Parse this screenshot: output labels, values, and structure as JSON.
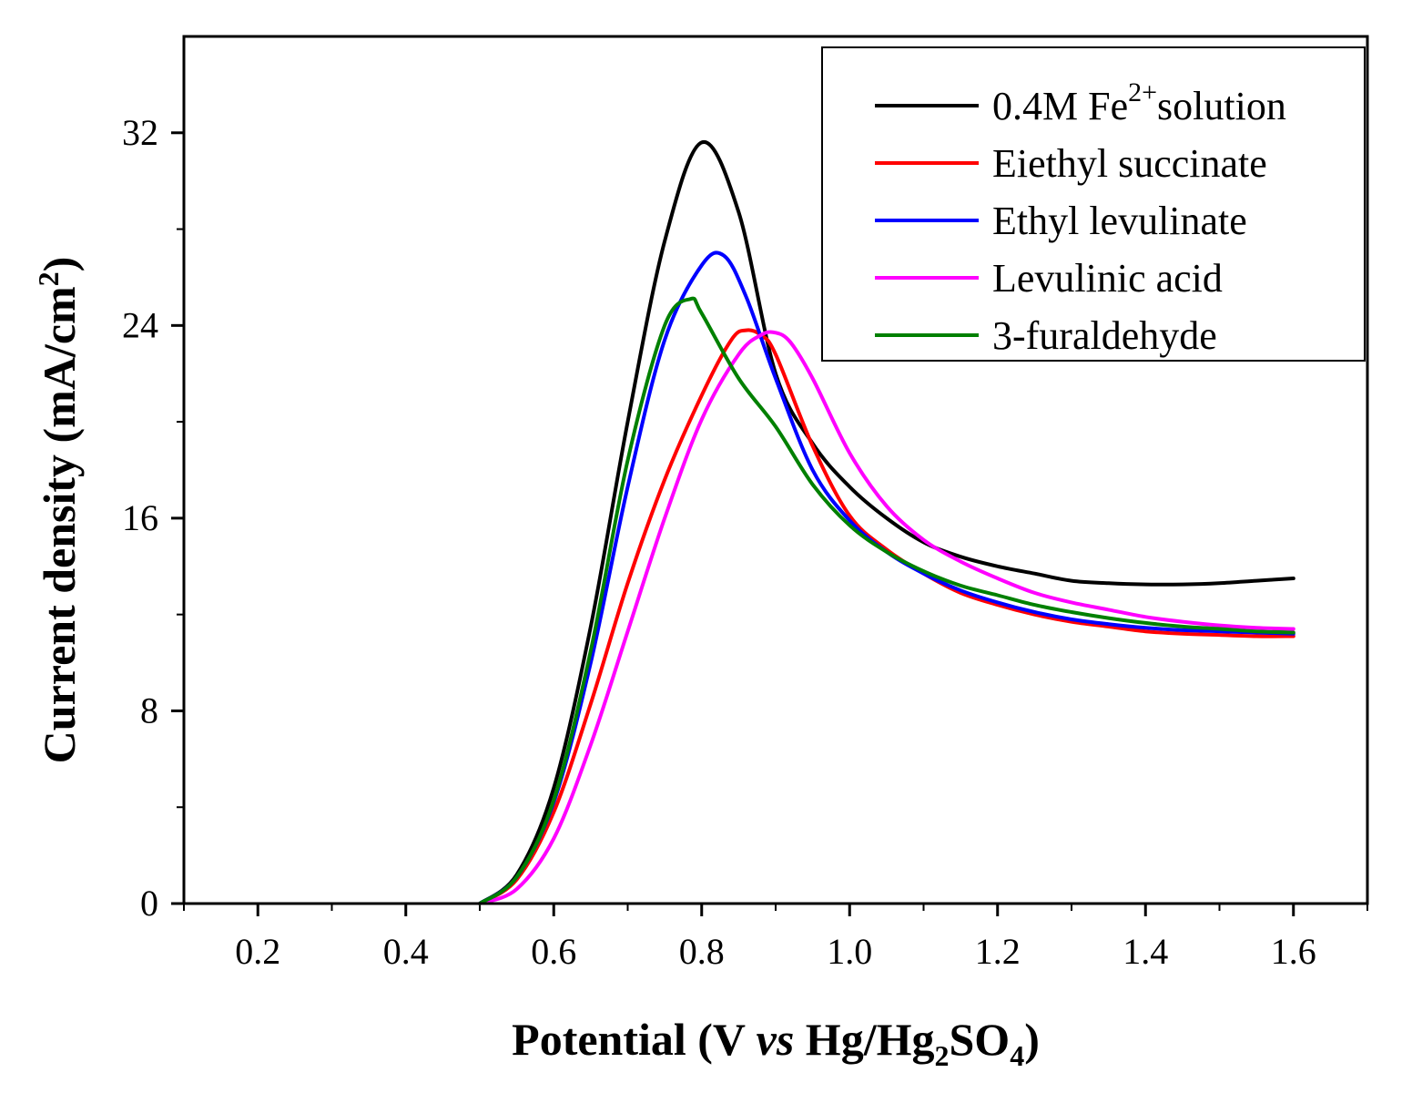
{
  "chart_data": {
    "type": "line",
    "title": "",
    "xlabel": {
      "prefix": "Potential (V ",
      "italic": "vs",
      "middle": " Hg/Hg",
      "sub1": "2",
      "mid2": "SO",
      "sub2": "4",
      "suffix": ")"
    },
    "ylabel": {
      "prefix": "Current density (mA/cm",
      "sup": "2",
      "suffix": ")"
    },
    "xlim": [
      0.1,
      1.7
    ],
    "ylim": [
      0,
      36
    ],
    "xticks": [
      0.2,
      0.4,
      0.6,
      0.8,
      1.0,
      1.2,
      1.4,
      1.6
    ],
    "xtick_labels": [
      "0.2",
      "0.4",
      "0.6",
      "0.8",
      "1.0",
      "1.2",
      "1.4",
      "1.6"
    ],
    "xminor": [
      0.1,
      0.3,
      0.5,
      0.7,
      0.9,
      1.1,
      1.3,
      1.5,
      1.7
    ],
    "yticks": [
      0,
      8,
      16,
      24,
      32
    ],
    "ytick_labels": [
      "0",
      "8",
      "16",
      "24",
      "32"
    ],
    "yminor": [
      4,
      12,
      20,
      28
    ],
    "grid": false,
    "legend_position": "top-right",
    "series": [
      {
        "name": "0.4M Fe2+ solution",
        "legend": {
          "prefix": "0.4M Fe",
          "sup": "2+",
          "suffix": "solution"
        },
        "color": "#000000",
        "x": [
          0.5,
          0.55,
          0.6,
          0.65,
          0.7,
          0.75,
          0.8,
          0.85,
          0.9,
          0.95,
          1.0,
          1.05,
          1.1,
          1.15,
          1.2,
          1.25,
          1.3,
          1.35,
          1.4,
          1.45,
          1.5,
          1.55,
          1.6
        ],
        "y": [
          0,
          1.2,
          4.8,
          11.5,
          20.0,
          27.5,
          31.6,
          28.7,
          22.0,
          19.1,
          17.3,
          16.0,
          15.0,
          14.4,
          14.0,
          13.7,
          13.4,
          13.3,
          13.25,
          13.25,
          13.3,
          13.4,
          13.5
        ]
      },
      {
        "name": "Eiethyl succinate",
        "legend": {
          "prefix": "Eiethyl succinate",
          "sup": "",
          "suffix": ""
        },
        "color": "#ff0000",
        "x": [
          0.5,
          0.55,
          0.6,
          0.65,
          0.7,
          0.75,
          0.8,
          0.84,
          0.86,
          0.88,
          0.9,
          0.95,
          1.0,
          1.05,
          1.1,
          1.15,
          1.2,
          1.25,
          1.3,
          1.35,
          1.4,
          1.45,
          1.5,
          1.55,
          1.6
        ],
        "y": [
          0,
          1.0,
          3.8,
          8.3,
          13.3,
          17.6,
          21.1,
          23.4,
          23.8,
          23.6,
          22.8,
          19.0,
          16.1,
          14.7,
          13.7,
          12.9,
          12.4,
          12.0,
          11.7,
          11.5,
          11.3,
          11.2,
          11.15,
          11.1,
          11.1
        ]
      },
      {
        "name": "Ethyl levulinate",
        "legend": {
          "prefix": "Ethyl levulinate",
          "sup": "",
          "suffix": ""
        },
        "color": "#0000ff",
        "x": [
          0.5,
          0.55,
          0.6,
          0.65,
          0.7,
          0.75,
          0.8,
          0.83,
          0.86,
          0.9,
          0.95,
          1.0,
          1.05,
          1.1,
          1.15,
          1.2,
          1.25,
          1.3,
          1.35,
          1.4,
          1.45,
          1.5,
          1.55,
          1.6
        ],
        "y": [
          0,
          1.1,
          4.2,
          10.0,
          17.3,
          23.4,
          26.5,
          26.9,
          25.2,
          21.8,
          18.0,
          15.9,
          14.6,
          13.7,
          13.0,
          12.5,
          12.1,
          11.8,
          11.6,
          11.45,
          11.35,
          11.3,
          11.25,
          11.2
        ]
      },
      {
        "name": "Levulinic acid",
        "legend": {
          "prefix": "Levulinic acid",
          "sup": "",
          "suffix": ""
        },
        "color": "#ff00ff",
        "x": [
          0.5,
          0.55,
          0.6,
          0.65,
          0.7,
          0.75,
          0.8,
          0.85,
          0.88,
          0.9,
          0.92,
          0.95,
          1.0,
          1.05,
          1.1,
          1.15,
          1.2,
          1.25,
          1.3,
          1.35,
          1.4,
          1.45,
          1.5,
          1.55,
          1.6
        ],
        "y": [
          0,
          0.6,
          2.7,
          6.6,
          11.3,
          16.0,
          20.1,
          22.8,
          23.6,
          23.7,
          23.3,
          21.8,
          18.7,
          16.5,
          15.1,
          14.2,
          13.5,
          12.9,
          12.5,
          12.2,
          11.9,
          11.7,
          11.55,
          11.45,
          11.4
        ]
      },
      {
        "name": "3-furaldehyde",
        "legend": {
          "prefix": "3-furaldehyde",
          "sup": "",
          "suffix": ""
        },
        "color": "#008000",
        "x": [
          0.5,
          0.55,
          0.6,
          0.65,
          0.7,
          0.75,
          0.785,
          0.8,
          0.85,
          0.9,
          0.95,
          1.0,
          1.05,
          1.1,
          1.15,
          1.2,
          1.25,
          1.3,
          1.35,
          1.4,
          1.45,
          1.5,
          1.55,
          1.6
        ],
        "y": [
          0,
          1.1,
          4.3,
          10.5,
          18.4,
          24.0,
          25.1,
          24.5,
          21.8,
          19.8,
          17.4,
          15.7,
          14.6,
          13.8,
          13.2,
          12.8,
          12.4,
          12.1,
          11.85,
          11.65,
          11.5,
          11.4,
          11.3,
          11.25
        ]
      }
    ]
  }
}
